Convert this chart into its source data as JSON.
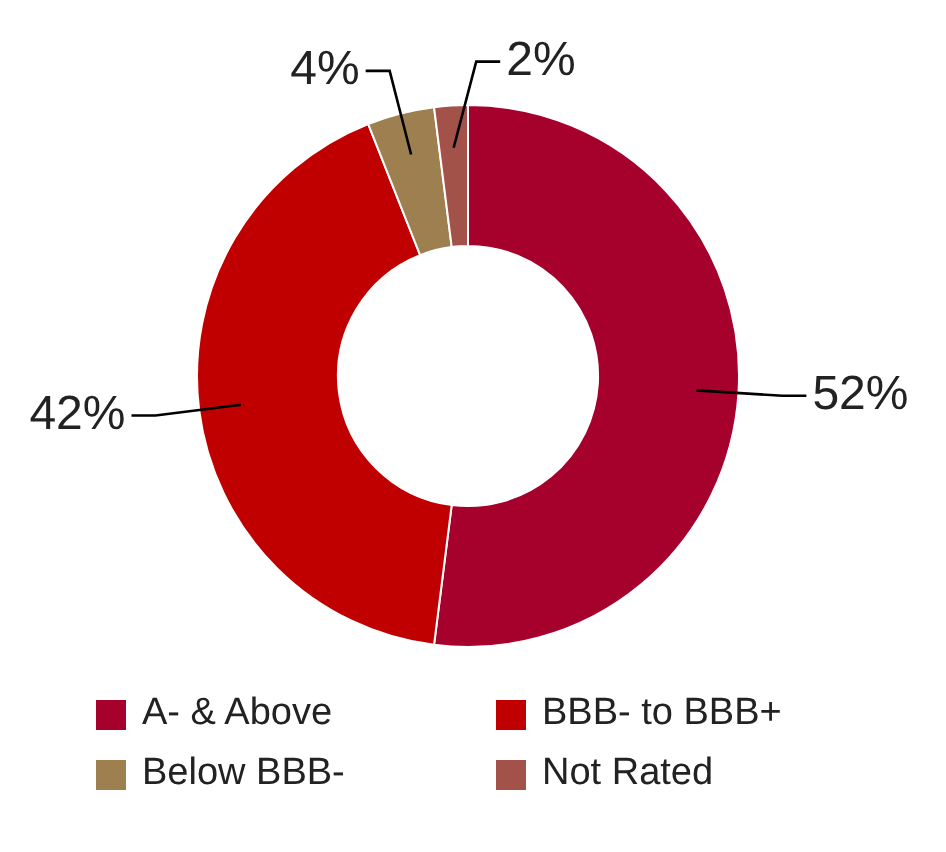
{
  "chart_data": {
    "type": "donut",
    "categories": [
      "A- & Above",
      "BBB- to BBB+",
      "Below BBB-",
      "Not Rated"
    ],
    "values": [
      52,
      42,
      4,
      2
    ],
    "value_labels": [
      "52%",
      "42%",
      "4%",
      "2%"
    ],
    "colors": [
      "#a6002c",
      "#c00000",
      "#9e7f50",
      "#a3524a"
    ],
    "legend": "bottom"
  }
}
